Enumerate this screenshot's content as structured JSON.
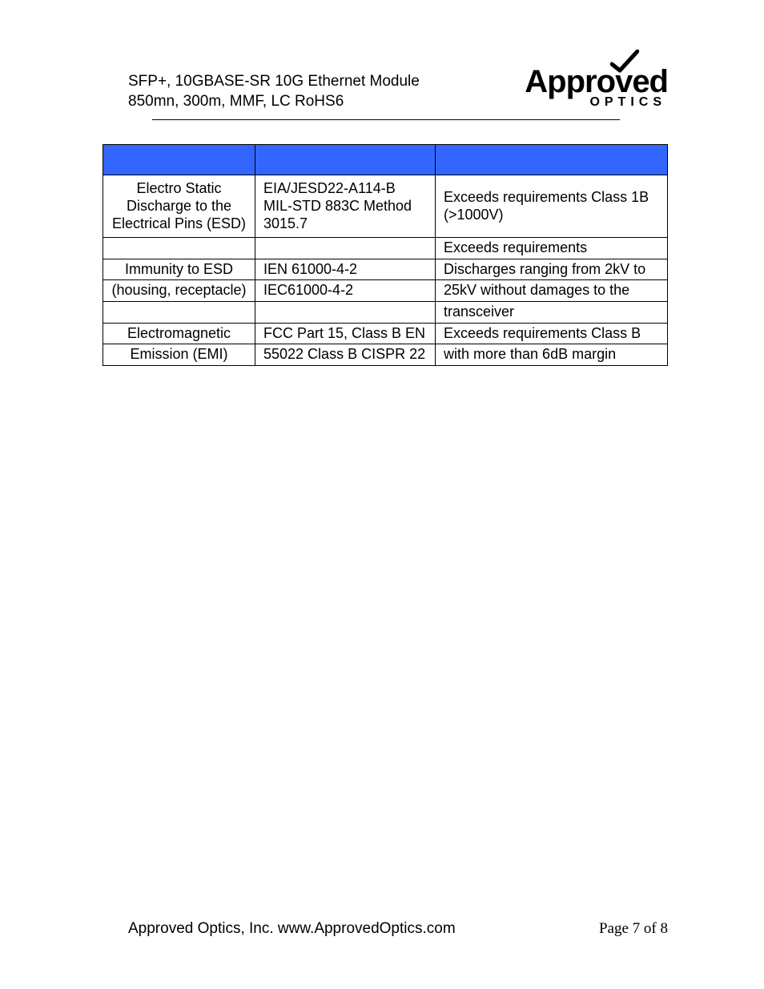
{
  "header": {
    "line1": "SFP+, 10GBASE-SR 10G Ethernet Module",
    "line2": "850mn, 300m, MMF, LC RoHS6"
  },
  "logo": {
    "main_left": "Appro",
    "main_right": "ed",
    "sub": "OPTICS",
    "color": "#000000",
    "check_color": "#000000"
  },
  "table": {
    "header_bg": "#3366ff",
    "border_color": "#000000",
    "columns": [
      "",
      "",
      ""
    ],
    "rows": [
      {
        "c1": "Electro Static Discharge to the Electrical Pins (ESD)",
        "c2": "EIA/JESD22-A114-B MIL-STD 883C Method 3015.7",
        "c3": "Exceeds requirements Class 1B (>1000V)",
        "tall": true,
        "c1_align": "center",
        "c2_align": "left",
        "c3_align": "left"
      },
      {
        "c1": "",
        "c2": "",
        "c3": "Exceeds requirements",
        "c1_align": "center",
        "c2_align": "left",
        "c3_align": "left"
      },
      {
        "c1": "Immunity to ESD",
        "c2": "IEN 61000-4-2",
        "c3": "Discharges ranging from 2kV to",
        "c1_align": "center",
        "c2_align": "left",
        "c3_align": "left"
      },
      {
        "c1": "(housing, receptacle)",
        "c2": "IEC61000-4-2",
        "c3": "25kV without damages to the",
        "c1_align": "center",
        "c2_align": "left",
        "c3_align": "left"
      },
      {
        "c1": "",
        "c2": "",
        "c3": "transceiver",
        "c1_align": "center",
        "c2_align": "left",
        "c3_align": "left"
      },
      {
        "c1": "Electromagnetic",
        "c2": "FCC Part 15, Class B EN",
        "c3": "Exceeds requirements Class B",
        "c1_align": "center",
        "c2_align": "left",
        "c3_align": "left"
      },
      {
        "c1": "Emission (EMI)",
        "c2": "55022 Class B CISPR 22",
        "c3": "with more than 6dB margin",
        "c1_align": "center",
        "c2_align": "left",
        "c3_align": "left"
      }
    ]
  },
  "footer": {
    "left": "Approved Optics, Inc.  www.ApprovedOptics.com",
    "right": "Page 7 of 8"
  }
}
